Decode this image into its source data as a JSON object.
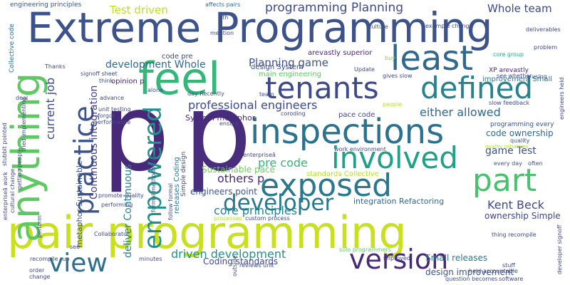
{
  "words": [
    {
      "text": "Extreme Programming",
      "color": "#3b528b"
    },
    {
      "text": "pair programming",
      "color": "#c8e020"
    },
    {
      "text": "p",
      "color": "#482878"
    },
    {
      "text": "p",
      "color": "#472d7b"
    },
    {
      "text": "feel",
      "color": "#35b779"
    },
    {
      "text": "least",
      "color": "#31688e"
    },
    {
      "text": "tenants",
      "color": "#3e4989"
    },
    {
      "text": "defined",
      "color": "#26828e"
    },
    {
      "text": "inspections",
      "color": "#2c728e"
    },
    {
      "text": "involved",
      "color": "#1fa187"
    },
    {
      "text": "exposed",
      "color": "#2a788e"
    },
    {
      "text": "part",
      "color": "#4ac16d"
    },
    {
      "text": "anything",
      "color": "#5ec962"
    },
    {
      "text": "practice",
      "color": "#3b528b"
    },
    {
      "text": "empowered",
      "color": "#21918c"
    },
    {
      "text": "view",
      "color": "#2e6e8e"
    },
    {
      "text": "version",
      "color": "#482878"
    },
    {
      "text": "developer",
      "color": "#2a788e"
    },
    {
      "text": "programming Planning",
      "color": "#3e4989"
    },
    {
      "text": "Test driven",
      "color": "#bddf26"
    },
    {
      "text": "Whole team",
      "color": "#3e4989"
    },
    {
      "text": "development Whole",
      "color": "#31688e"
    },
    {
      "text": "Planning game",
      "color": "#3b528b"
    },
    {
      "text": "professional engineers",
      "color": "#3e4989"
    },
    {
      "text": "either allowed",
      "color": "#31688e"
    },
    {
      "text": "current job",
      "color": "#3e4989"
    },
    {
      "text": "others p",
      "color": "#482878"
    },
    {
      "text": "pre code",
      "color": "#35b779"
    },
    {
      "text": "core principles",
      "color": "#26828e"
    },
    {
      "text": "driven development",
      "color": "#21918c"
    },
    {
      "text": "Kent Beck",
      "color": "#3e4989"
    },
    {
      "text": "game Test",
      "color": "#3b528b"
    },
    {
      "text": "deliver Continuous",
      "color": "#26828e"
    },
    {
      "text": "Continuous integration",
      "color": "#433e85"
    },
    {
      "text": "Sustainable pace",
      "color": "#6ece58"
    },
    {
      "text": "code ownership",
      "color": "#31688e"
    },
    {
      "text": "design improvement",
      "color": "#3b528b"
    },
    {
      "text": "Small releases",
      "color": "#2a788e"
    },
    {
      "text": "Coding standards",
      "color": "#3e4989"
    },
    {
      "text": "ownership Simple",
      "color": "#414487"
    },
    {
      "text": "engineers point",
      "color": "#3b528b"
    },
    {
      "text": "integration Refactoring",
      "color": "#31688e"
    },
    {
      "text": "System metaphor",
      "color": "#482878"
    },
    {
      "text": "metaphor Sustainable",
      "color": "#3b528b"
    },
    {
      "text": "releases Coding",
      "color": "#2a788e"
    },
    {
      "text": "design System",
      "color": "#3e4989"
    },
    {
      "text": "arevastly superior",
      "color": "#482878"
    },
    {
      "text": "main engineering",
      "color": "#5ec962"
    },
    {
      "text": "improvement Small",
      "color": "#2a788e"
    },
    {
      "text": "XP arevastly",
      "color": "#482878"
    },
    {
      "text": "programming every",
      "color": "#3b528b"
    },
    {
      "text": "pace code",
      "color": "#3e4989"
    },
    {
      "text": "standards Collective",
      "color": "#b5de2b"
    },
    {
      "text": "code pre",
      "color": "#3e4989"
    },
    {
      "text": "opinion p",
      "color": "#482878"
    },
    {
      "text": "Simple design",
      "color": "#3e4989"
    },
    {
      "text": "engineering principles",
      "color": "#3b528b"
    },
    {
      "text": "Collective code",
      "color": "#2e6e8e"
    },
    {
      "text": "affects pairs",
      "color": "#31688e"
    },
    {
      "text": "work environment",
      "color": "#3e4989"
    },
    {
      "text": "thing recompile",
      "color": "#3e4989"
    },
    {
      "text": "solo programmers",
      "color": "#5ec962"
    },
    {
      "text": "Collaborator",
      "color": "#3e4989"
    },
    {
      "text": "unit testing",
      "color": "#3e4989"
    },
    {
      "text": "signoff sheet",
      "color": "#3e4989"
    },
    {
      "text": "slow feedback",
      "color": "#3e4989"
    },
    {
      "text": "core group",
      "color": "#22a884"
    },
    {
      "text": "see whether",
      "color": "#3e4989"
    },
    {
      "text": "example change",
      "color": "#3e4989"
    },
    {
      "text": "gives slow",
      "color": "#3e4989"
    },
    {
      "text": "Update",
      "color": "#3e4989"
    },
    {
      "text": "culture",
      "color": "#3b528b"
    },
    {
      "text": "problem",
      "color": "#3e4989"
    },
    {
      "text": "deliverables",
      "color": "#3e4989"
    },
    {
      "text": "using",
      "color": "#3b528b"
    },
    {
      "text": "buy",
      "color": "#7ad151"
    },
    {
      "text": "mention",
      "color": "#3e4989"
    },
    {
      "text": "sth",
      "color": "#3e4989"
    },
    {
      "text": "Thanks",
      "color": "#3e4989"
    },
    {
      "text": "think",
      "color": "#3b528b"
    },
    {
      "text": "alone",
      "color": "#3e4989"
    },
    {
      "text": "advance",
      "color": "#3e4989"
    },
    {
      "text": "deal",
      "color": "#3e4989"
    },
    {
      "text": "forgot",
      "color": "#3b528b"
    },
    {
      "text": "performance",
      "color": "#3b528b"
    },
    {
      "text": "day Recently",
      "color": "#3b528b"
    },
    {
      "text": "team",
      "color": "#3e4989"
    },
    {
      "text": "coroding",
      "color": "#3e4989"
    },
    {
      "text": "ensure",
      "color": "#3e4989"
    },
    {
      "text": "quality",
      "color": "#3b528b"
    },
    {
      "text": "every day",
      "color": "#3b528b"
    },
    {
      "text": "often",
      "color": "#3e4989"
    },
    {
      "text": "reviews unit",
      "color": "#3e4989"
    },
    {
      "text": "minutes",
      "color": "#3e4989"
    },
    {
      "text": "order",
      "color": "#3e4989"
    },
    {
      "text": "change",
      "color": "#3e4989"
    },
    {
      "text": "recompile run",
      "color": "#3e4989"
    },
    {
      "text": "custom process",
      "color": "#3e4989"
    },
    {
      "text": "question becomes",
      "color": "#3b528b"
    },
    {
      "text": "software",
      "color": "#3e4989"
    },
    {
      "text": "stuff",
      "color": "#3e4989"
    },
    {
      "text": "held accountable",
      "color": "#3e4989"
    },
    {
      "text": "improved",
      "color": "#3e4989"
    },
    {
      "text": "outside",
      "color": "#3e4989"
    },
    {
      "text": "developer signoff",
      "color": "#3e4989"
    },
    {
      "text": "engineers held",
      "color": "#3e4989"
    },
    {
      "text": "cultural change",
      "color": "#3e4989"
    },
    {
      "text": "getting people",
      "color": "#3e4989"
    },
    {
      "text": "enterpriseã work",
      "color": "#3e4989"
    },
    {
      "text": "tried implementing",
      "color": "#3e4989"
    },
    {
      "text": "stubbit pointed",
      "color": "#3e4989"
    },
    {
      "text": "follow formal",
      "color": "#3e4989"
    },
    {
      "text": "formal methodology",
      "color": "#3e4989"
    },
    {
      "text": "perform",
      "color": "#3e4989"
    },
    {
      "text": "promote quality",
      "color": "#3e4989"
    },
    {
      "text": "performing",
      "color": "#3e4989"
    },
    {
      "text": "enterpriseã",
      "color": "#3e4989"
    },
    {
      "text": "processes",
      "color": "#b5de2b"
    },
    {
      "text": "see",
      "color": "#3e4989"
    },
    {
      "text": "people",
      "color": "#b5de2b"
    },
    {
      "text": "quality initiatives",
      "color": "#b5de2b"
    }
  ]
}
